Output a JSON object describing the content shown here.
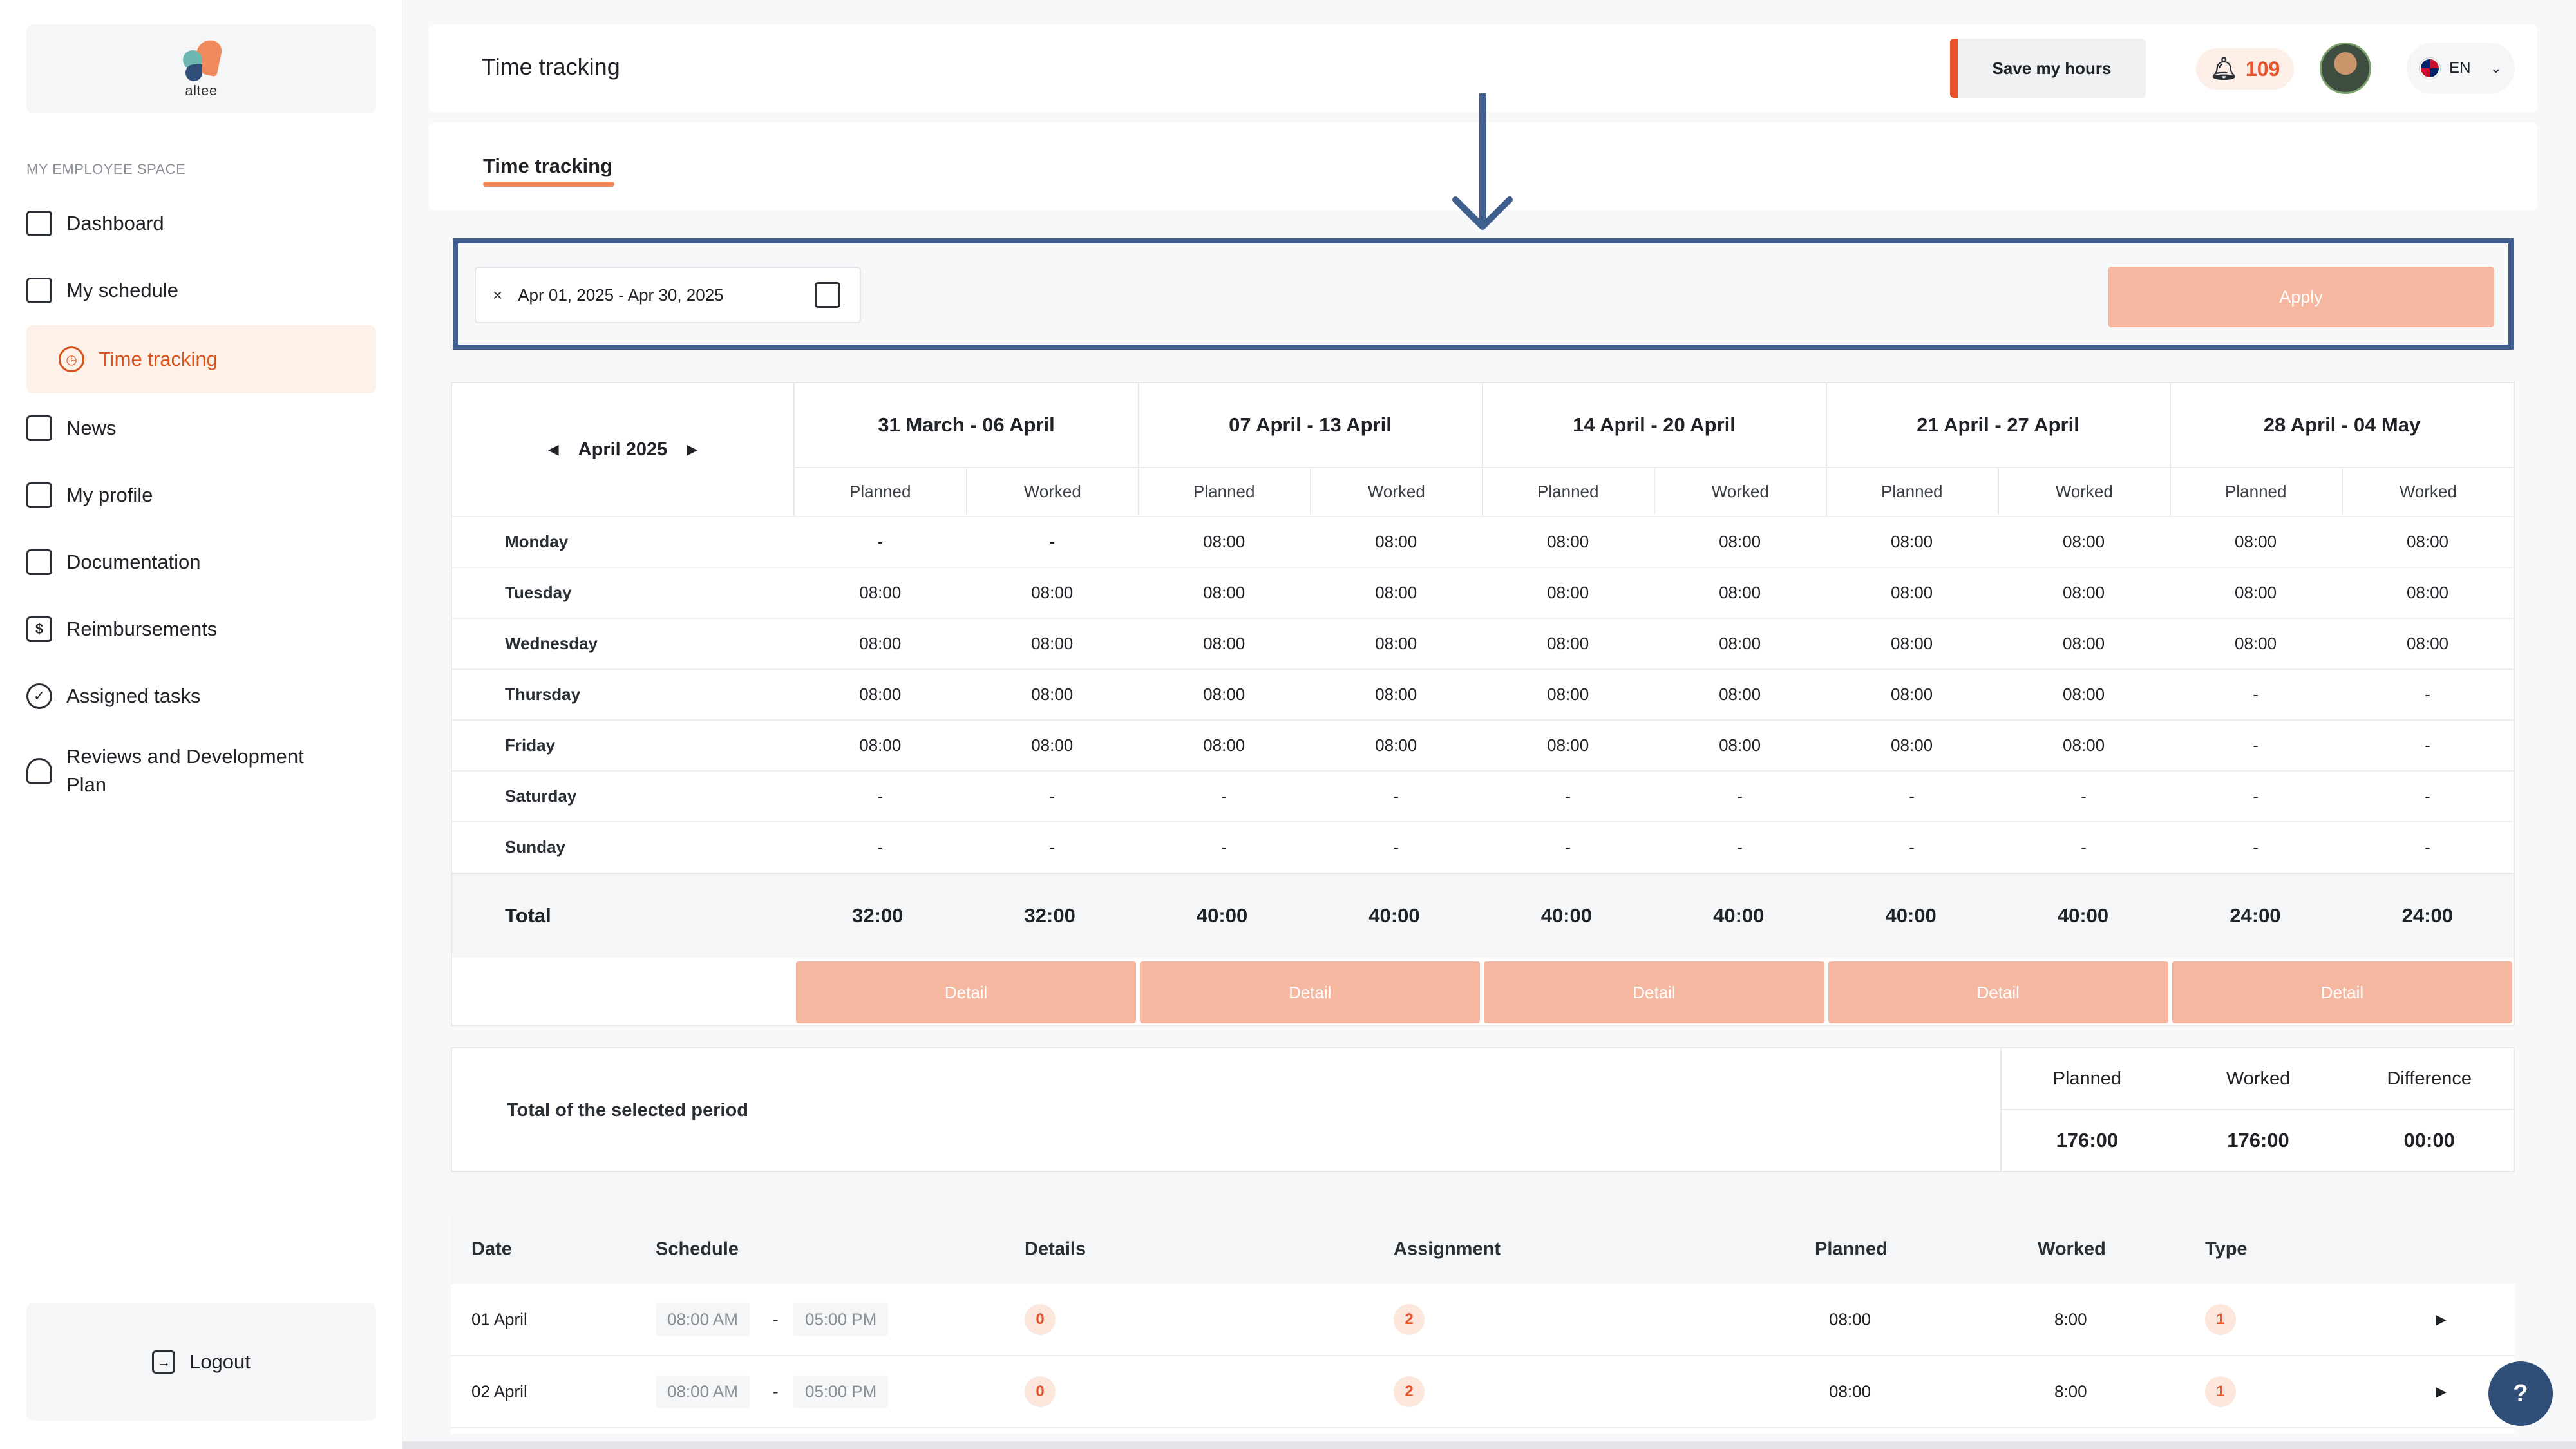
{
  "brand": {
    "name": "altee"
  },
  "sidebar": {
    "section": "MY EMPLOYEE SPACE",
    "items": [
      {
        "label": "Dashboard",
        "icon": "grid-icon"
      },
      {
        "label": "My schedule",
        "icon": "calendar-icon"
      },
      {
        "label": "Time tracking",
        "icon": "clock-icon",
        "active": true
      },
      {
        "label": "News",
        "icon": "news-icon"
      },
      {
        "label": "My profile",
        "icon": "folder-user-icon"
      },
      {
        "label": "Documentation",
        "icon": "documents-icon"
      },
      {
        "label": "Reimbursements",
        "icon": "dollar-icon"
      },
      {
        "label": "Assigned tasks",
        "icon": "check-circle-icon"
      },
      {
        "label": "Reviews and Development Plan",
        "icon": "person-icon"
      }
    ],
    "logout": "Logout"
  },
  "header": {
    "title": "Time tracking",
    "save_label": "Save my hours",
    "notifications": "109",
    "lang": "EN"
  },
  "tabs": [
    {
      "label": "Time tracking"
    }
  ],
  "filter": {
    "date_range": "Apr 01, 2025 - Apr 30, 2025",
    "clear": "×",
    "apply": "Apply"
  },
  "calendar": {
    "month": "April 2025",
    "sub_planned": "Planned",
    "sub_worked": "Worked",
    "weeks": [
      "31 March - 06 April",
      "07 April - 13 April",
      "14 April - 20 April",
      "21 April - 27 April",
      "28 April - 04 May"
    ],
    "days": [
      {
        "name": "Monday",
        "values": [
          "-",
          "-",
          "08:00",
          "08:00",
          "08:00",
          "08:00",
          "08:00",
          "08:00",
          "08:00",
          "08:00"
        ]
      },
      {
        "name": "Tuesday",
        "values": [
          "08:00",
          "08:00",
          "08:00",
          "08:00",
          "08:00",
          "08:00",
          "08:00",
          "08:00",
          "08:00",
          "08:00"
        ]
      },
      {
        "name": "Wednesday",
        "values": [
          "08:00",
          "08:00",
          "08:00",
          "08:00",
          "08:00",
          "08:00",
          "08:00",
          "08:00",
          "08:00",
          "08:00"
        ]
      },
      {
        "name": "Thursday",
        "values": [
          "08:00",
          "08:00",
          "08:00",
          "08:00",
          "08:00",
          "08:00",
          "08:00",
          "08:00",
          "-",
          "-"
        ]
      },
      {
        "name": "Friday",
        "values": [
          "08:00",
          "08:00",
          "08:00",
          "08:00",
          "08:00",
          "08:00",
          "08:00",
          "08:00",
          "-",
          "-"
        ]
      },
      {
        "name": "Saturday",
        "values": [
          "-",
          "-",
          "-",
          "-",
          "-",
          "-",
          "-",
          "-",
          "-",
          "-"
        ]
      },
      {
        "name": "Sunday",
        "values": [
          "-",
          "-",
          "-",
          "-",
          "-",
          "-",
          "-",
          "-",
          "-",
          "-"
        ]
      }
    ],
    "total_label": "Total",
    "totals": [
      "32:00",
      "32:00",
      "40:00",
      "40:00",
      "40:00",
      "40:00",
      "40:00",
      "40:00",
      "24:00",
      "24:00"
    ],
    "detail_label": "Detail"
  },
  "summary": {
    "label": "Total of the selected period",
    "planned_label": "Planned",
    "worked_label": "Worked",
    "difference_label": "Difference",
    "planned": "176:00",
    "worked": "176:00",
    "difference": "00:00"
  },
  "list": {
    "headers": {
      "date": "Date",
      "schedule": "Schedule",
      "details": "Details",
      "assignment": "Assignment",
      "planned": "Planned",
      "worked": "Worked",
      "type": "Type"
    },
    "rows": [
      {
        "date": "01 April",
        "start": "08:00 AM",
        "sep": "-",
        "end": "05:00 PM",
        "details": "0",
        "assignment": "2",
        "planned": "08:00",
        "worked": "8:00",
        "type": "1"
      },
      {
        "date": "02 April",
        "start": "08:00 AM",
        "sep": "-",
        "end": "05:00 PM",
        "details": "0",
        "assignment": "2",
        "planned": "08:00",
        "worked": "8:00",
        "type": "1"
      }
    ]
  },
  "help": "?"
}
